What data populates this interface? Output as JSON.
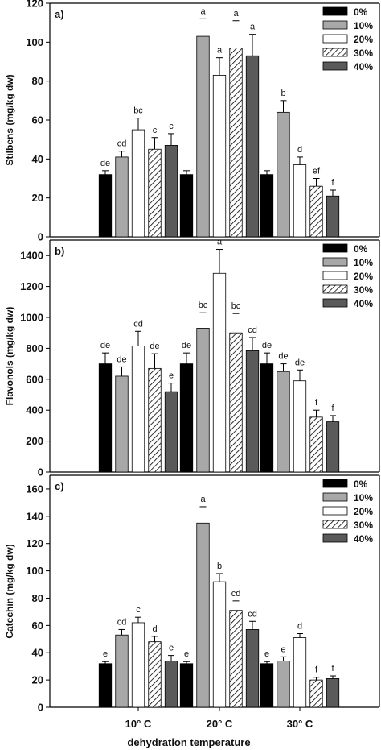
{
  "x_axis_title": "dehydration temperature",
  "legend_entries": [
    "0%",
    "10%",
    "20%",
    "30%",
    "40%"
  ],
  "series_styles": [
    {
      "fill": "#000000",
      "pattern": "solid"
    },
    {
      "fill": "#a8a8a8",
      "pattern": "solid"
    },
    {
      "fill": "#ffffff",
      "pattern": "solid"
    },
    {
      "fill": "#ffffff",
      "pattern": "hatch"
    },
    {
      "fill": "#5a5a5a",
      "pattern": "solid"
    }
  ],
  "chart_data": [
    {
      "type": "bar",
      "panel_label": "a)",
      "ylabel": "Stilbens (mg/kg dw)",
      "xlabel": "dehydration temperature",
      "categories": [
        "10° C",
        "20° C",
        "30° C"
      ],
      "ylim": [
        0,
        120
      ],
      "yticks": [
        0,
        20,
        40,
        60,
        80,
        100,
        120
      ],
      "legend_position": "top-right",
      "series": [
        {
          "name": "0%",
          "values": [
            32,
            32,
            32
          ],
          "errors": [
            2,
            2,
            2
          ],
          "labels": [
            "de",
            "",
            ""
          ]
        },
        {
          "name": "10%",
          "values": [
            41,
            103,
            64
          ],
          "errors": [
            3,
            9,
            6
          ],
          "labels": [
            "cd",
            "a",
            "b"
          ]
        },
        {
          "name": "20%",
          "values": [
            55,
            83,
            37
          ],
          "errors": [
            6,
            9,
            4
          ],
          "labels": [
            "bc",
            "a",
            "d"
          ]
        },
        {
          "name": "30%",
          "values": [
            45,
            97,
            26
          ],
          "errors": [
            6,
            14,
            4
          ],
          "labels": [
            "c",
            "a",
            "ef"
          ]
        },
        {
          "name": "40%",
          "values": [
            47,
            93,
            21
          ],
          "errors": [
            6,
            11,
            3
          ],
          "labels": [
            "c",
            "a",
            "f"
          ]
        }
      ]
    },
    {
      "type": "bar",
      "panel_label": "b)",
      "ylabel": "Flavonols (mg/kg dw)",
      "xlabel": "dehydration temperature",
      "categories": [
        "10° C",
        "20° C",
        "30° C"
      ],
      "ylim": [
        0,
        1500
      ],
      "yticks": [
        0,
        200,
        400,
        600,
        800,
        1000,
        1200,
        1400
      ],
      "legend_position": "top-right",
      "series": [
        {
          "name": "0%",
          "values": [
            700,
            700,
            700
          ],
          "errors": [
            70,
            70,
            70
          ],
          "labels": [
            "de",
            "de",
            "de"
          ]
        },
        {
          "name": "10%",
          "values": [
            620,
            930,
            650
          ],
          "errors": [
            60,
            100,
            50
          ],
          "labels": [
            "de",
            "bc",
            "de"
          ]
        },
        {
          "name": "20%",
          "values": [
            815,
            1285,
            590
          ],
          "errors": [
            95,
            155,
            70
          ],
          "labels": [
            "cd",
            "a",
            "de"
          ]
        },
        {
          "name": "30%",
          "values": [
            670,
            900,
            355
          ],
          "errors": [
            95,
            125,
            45
          ],
          "labels": [
            "de",
            "bc",
            "f"
          ]
        },
        {
          "name": "40%",
          "values": [
            520,
            785,
            325
          ],
          "errors": [
            55,
            85,
            40
          ],
          "labels": [
            "e",
            "cd",
            "f"
          ]
        }
      ]
    },
    {
      "type": "bar",
      "panel_label": "c)",
      "ylabel": "Catechin (mg/kg dw)",
      "xlabel": "dehydration temperature",
      "categories": [
        "10° C",
        "20° C",
        "30° C"
      ],
      "ylim": [
        0,
        170
      ],
      "yticks": [
        0,
        20,
        40,
        60,
        80,
        100,
        120,
        140,
        160
      ],
      "legend_position": "top-right",
      "series": [
        {
          "name": "0%",
          "values": [
            32,
            32,
            32
          ],
          "errors": [
            1.5,
            1.5,
            1.5
          ],
          "labels": [
            "e",
            "e",
            "e"
          ]
        },
        {
          "name": "10%",
          "values": [
            53,
            135,
            34
          ],
          "errors": [
            4,
            12,
            3
          ],
          "labels": [
            "cd",
            "a",
            "e"
          ]
        },
        {
          "name": "20%",
          "values": [
            62,
            92,
            51
          ],
          "errors": [
            4,
            6,
            3
          ],
          "labels": [
            "c",
            "b",
            "d"
          ]
        },
        {
          "name": "30%",
          "values": [
            48,
            71,
            20
          ],
          "errors": [
            4,
            7,
            2
          ],
          "labels": [
            "d",
            "cd",
            "f"
          ]
        },
        {
          "name": "40%",
          "values": [
            34,
            57,
            21
          ],
          "errors": [
            4,
            6,
            2
          ],
          "labels": [
            "e",
            "cd",
            "f"
          ]
        }
      ]
    }
  ]
}
